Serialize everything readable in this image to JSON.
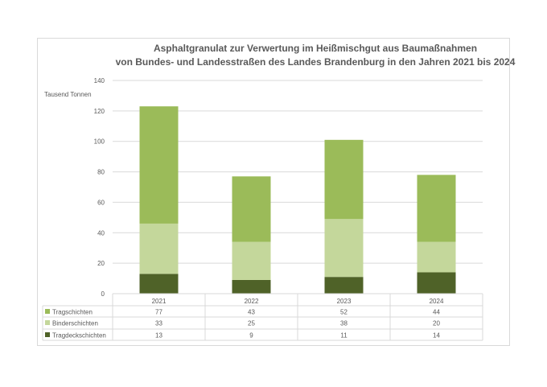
{
  "chart_data": {
    "type": "bar",
    "stacked": true,
    "title_line1": "Asphaltgranulat zur Verwertung im Heißmischgut aus Baumaßnahmen",
    "title_line2": "von Bundes- und Landesstraßen des Landes Brandenburg in den Jahren 2021 bis 2024",
    "ylabel": "Tausend Tonnen",
    "ylim": [
      0,
      140
    ],
    "yticks": [
      0,
      20,
      40,
      60,
      80,
      100,
      120,
      140
    ],
    "grid": true,
    "legend": "data-table-below",
    "categories": [
      "2021",
      "2022",
      "2023",
      "2024"
    ],
    "series": [
      {
        "name": "Tragdeckschichten",
        "values": [
          13,
          9,
          11,
          14
        ],
        "color": "#4f6228"
      },
      {
        "name": "Binderschichten",
        "values": [
          33,
          25,
          38,
          20
        ],
        "color": "#c4d79b"
      },
      {
        "name": "Tragschichten",
        "values": [
          77,
          43,
          52,
          44
        ],
        "color": "#9bbb59"
      }
    ],
    "table_order": [
      "Tragschichten",
      "Binderschichten",
      "Tragdeckschichten"
    ]
  }
}
